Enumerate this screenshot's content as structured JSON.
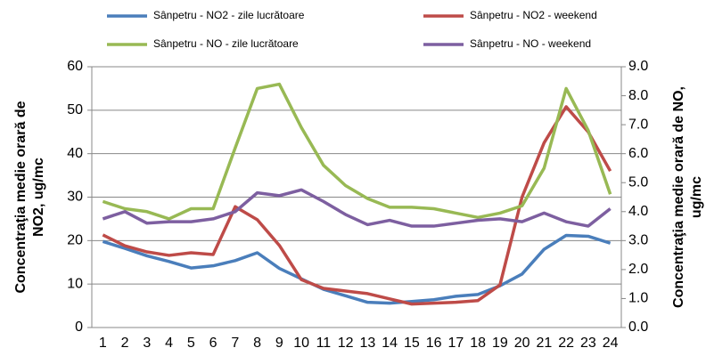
{
  "chart_data": {
    "type": "line",
    "categories": [
      "1",
      "2",
      "3",
      "4",
      "5",
      "6",
      "7",
      "8",
      "9",
      "10",
      "11",
      "12",
      "13",
      "14",
      "15",
      "16",
      "17",
      "18",
      "19",
      "20",
      "21",
      "22",
      "23",
      "24"
    ],
    "series": [
      {
        "name": "Sânpetru - NO2 - zile lucrătoare",
        "color": "#4a7ebb",
        "values": [
          19.8,
          18.2,
          16.5,
          15.2,
          13.7,
          14.2,
          15.4,
          17.2,
          13.6,
          11.2,
          8.8,
          7.3,
          5.8,
          5.6,
          6.0,
          6.4,
          7.2,
          7.6,
          9.6,
          12.3,
          18.0,
          21.2,
          21.0,
          19.4
        ]
      },
      {
        "name": "Sânpetru - NO2 - weekend",
        "color": "#be4b48",
        "values": [
          21.3,
          18.8,
          17.4,
          16.6,
          17.2,
          16.8,
          27.8,
          24.8,
          18.9,
          11.0,
          9.0,
          8.4,
          7.8,
          6.6,
          5.4,
          5.6,
          5.8,
          6.2,
          9.8,
          30.0,
          42.5,
          50.8,
          45.0,
          36.0
        ]
      },
      {
        "name": "Sânpetru - NO - zile lucrătoare",
        "color": "#98b954",
        "axis": "y2",
        "values": [
          4.35,
          4.1,
          4.0,
          3.75,
          4.1,
          4.1,
          6.2,
          8.25,
          8.4,
          6.9,
          5.6,
          4.9,
          4.45,
          4.15,
          4.15,
          4.1,
          3.95,
          3.8,
          3.95,
          4.2,
          5.5,
          8.25,
          6.8,
          4.6
        ]
      },
      {
        "name": "Sânpetru - NO - weekend",
        "color": "#7d5fa0",
        "axis": "y2",
        "values": [
          3.75,
          4.0,
          3.6,
          3.65,
          3.65,
          3.75,
          4.0,
          4.65,
          4.55,
          4.75,
          4.35,
          3.9,
          3.55,
          3.7,
          3.5,
          3.5,
          3.6,
          3.7,
          3.75,
          3.65,
          3.95,
          3.65,
          3.5,
          4.1
        ]
      }
    ],
    "ylabel": [
      "Concentraţia medie orară de",
      "NO2, ug/mc"
    ],
    "y2label": [
      "Concentraţia medie orară de NO,",
      "ug/mc"
    ],
    "ylim": [
      0,
      60
    ],
    "yticks": [
      0,
      10,
      20,
      30,
      40,
      50,
      60
    ],
    "y2lim": [
      0,
      9
    ],
    "y2ticks": [
      {
        "value": 0,
        "label": "0.0"
      },
      {
        "value": 1,
        "label": "1.0"
      },
      {
        "value": 2,
        "label": "2.0"
      },
      {
        "value": 3,
        "label": "3.0"
      },
      {
        "value": 4,
        "label": "4.0"
      },
      {
        "value": 5,
        "label": "5.0"
      },
      {
        "value": 6,
        "label": "6.0"
      },
      {
        "value": 7,
        "label": "7.0"
      },
      {
        "value": 8,
        "label": "8.0"
      },
      {
        "value": 9,
        "label": "9.0"
      }
    ],
    "grid": true
  }
}
